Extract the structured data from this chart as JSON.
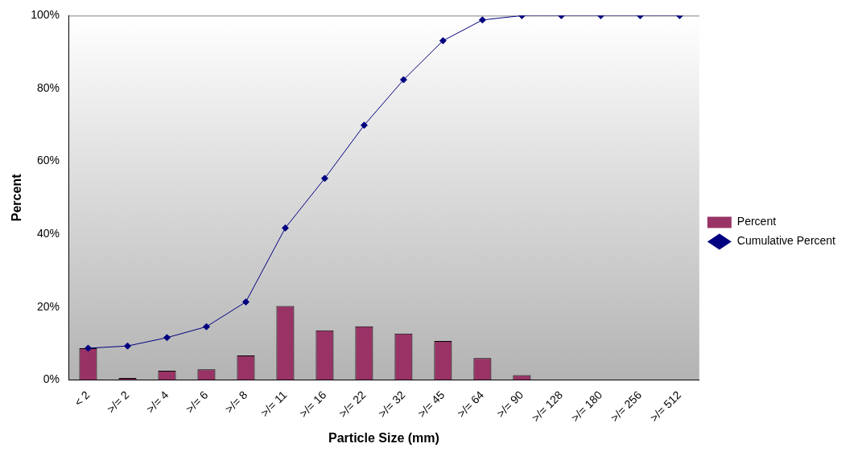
{
  "chart_data": {
    "type": "bar",
    "xlabel": "Particle Size (mm)",
    "ylabel": "Percent",
    "categories": [
      "< 2",
      ">/= 2",
      ">/= 4",
      ">/= 6",
      ">/= 8",
      ">/= 11",
      ">/= 16",
      ">/= 22",
      ">/= 32",
      ">/= 45",
      ">/= 64",
      ">/= 90",
      ">/= 128",
      ">/= 180",
      ">/= 256",
      ">/= 512"
    ],
    "series": [
      {
        "name": "Percent",
        "color": "#993366",
        "values": [
          8.7,
          0.5,
          2.5,
          2.9,
          6.7,
          20.3,
          13.6,
          14.7,
          12.7,
          10.7,
          6.0,
          1.3,
          0,
          0,
          0,
          0
        ]
      },
      {
        "name": "Cumulative Percent",
        "type": "line",
        "color": "#000080",
        "marker": "diamond",
        "values": [
          8.7,
          9.3,
          11.6,
          14.6,
          21.4,
          41.7,
          55.3,
          69.9,
          82.4,
          93.1,
          98.8,
          100,
          100,
          100,
          100,
          100
        ]
      }
    ],
    "ylim": [
      0,
      100
    ],
    "yticks": [
      {
        "value": 0,
        "label": "0%"
      },
      {
        "value": 20,
        "label": "20%"
      },
      {
        "value": 40,
        "label": "40%"
      },
      {
        "value": 60,
        "label": "60%"
      },
      {
        "value": 80,
        "label": "80%"
      },
      {
        "value": 100,
        "label": "100%"
      }
    ],
    "grid": false,
    "legend": "right"
  }
}
